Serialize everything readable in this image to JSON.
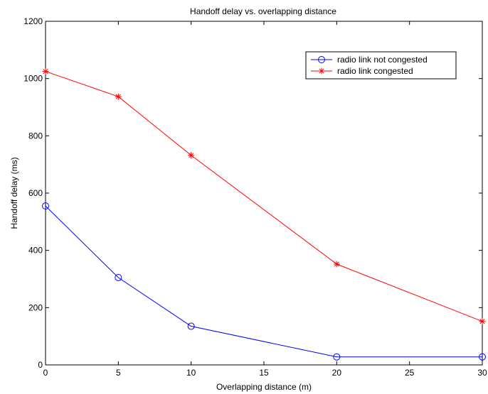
{
  "chart_data": {
    "type": "line",
    "title": "Handoff delay vs. overlapping distance",
    "xlabel": "Overlapping distance (m)",
    "ylabel": "Handoff delay (ms)",
    "xlim": [
      0,
      30
    ],
    "ylim": [
      0,
      1200
    ],
    "x_ticks": [
      0,
      5,
      10,
      15,
      20,
      25,
      30
    ],
    "y_ticks": [
      0,
      200,
      400,
      600,
      800,
      1000,
      1200
    ],
    "grid": false,
    "legend_position": "top-right",
    "series": [
      {
        "name": "radio link not congested",
        "color": "#0000ff",
        "marker": "circle",
        "x": [
          0,
          5,
          10,
          20,
          30
        ],
        "y": [
          555,
          305,
          135,
          28,
          28
        ]
      },
      {
        "name": "radio link congested",
        "color": "#ff0000",
        "marker": "asterisk",
        "x": [
          0,
          5,
          10,
          20,
          30
        ],
        "y": [
          1025,
          937,
          732,
          352,
          152
        ]
      }
    ]
  }
}
